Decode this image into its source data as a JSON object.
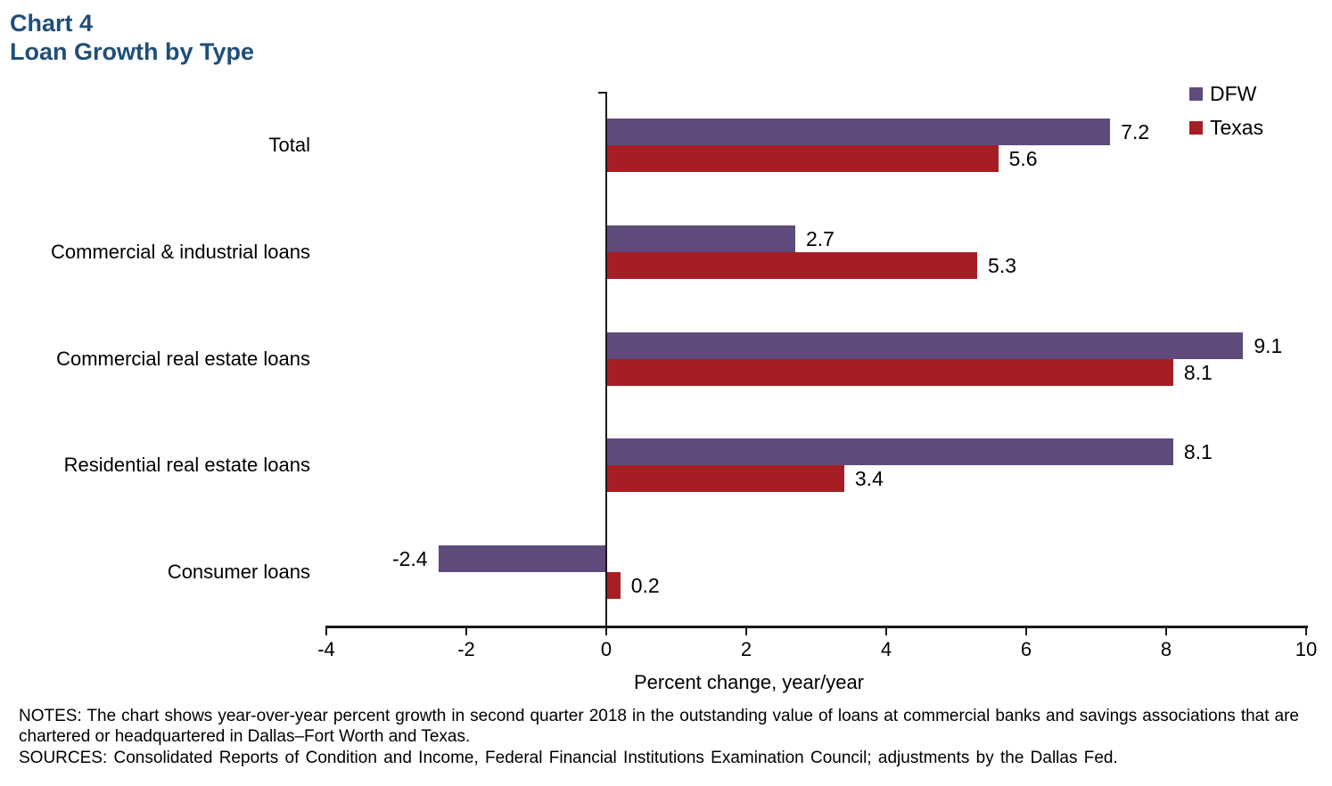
{
  "page": {
    "title_line1": "Chart 4",
    "title_line2": "Loan Growth by Type"
  },
  "chart_data": {
    "type": "bar",
    "orientation": "horizontal",
    "title": "Chart 4",
    "subtitle": "Loan Growth by Type",
    "categories": [
      "Total",
      "Commercial & industrial loans",
      "Commercial real estate loans",
      "Residential real estate loans",
      "Consumer loans"
    ],
    "series": [
      {
        "name": "DFW",
        "color": "#5F4A7C",
        "values": [
          7.2,
          2.7,
          9.1,
          8.1,
          -2.4
        ]
      },
      {
        "name": "Texas",
        "color": "#A51E24",
        "values": [
          5.6,
          5.3,
          8.1,
          3.4,
          0.2
        ]
      }
    ],
    "xlabel": "Percent change, year/year",
    "xlim": [
      -4,
      10
    ],
    "x_ticks": [
      -4,
      -2,
      0,
      2,
      4,
      6,
      8,
      10
    ],
    "value_labels": true,
    "value_label_decimals": 1,
    "legend_position": "top-right",
    "grid": false
  },
  "notes": {
    "notes_text": "NOTES: The chart shows year-over-year percent growth in second quarter 2018 in the outstanding value of loans at commercial banks and savings associations that are chartered or headquartered in Dallas–Fort Worth and Texas.",
    "sources_text": "SOURCES: Consolidated Reports of Condition and Income, Federal Financial Institutions Examination Council; adjustments by the Dallas Fed."
  },
  "colors": {
    "title_blue": "#1F4E79",
    "dfw_purple": "#5F4A7C",
    "texas_red": "#A51E24",
    "axis_black": "#1a1a1a"
  }
}
